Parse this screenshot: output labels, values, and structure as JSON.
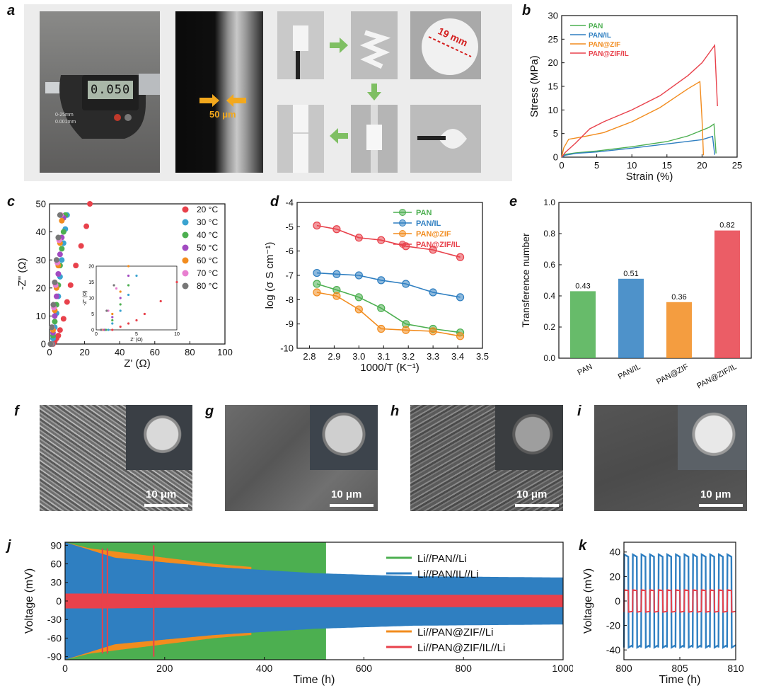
{
  "panel_labels": [
    "a",
    "b",
    "c",
    "d",
    "e",
    "f",
    "g",
    "h",
    "i",
    "j",
    "k"
  ],
  "panel_a": {
    "thickness_label": "50 μm",
    "diameter_label": "19 mm",
    "micrometer": {
      "reading": "0.050",
      "range": "0-25mm",
      "resolution": "0.001mm"
    }
  },
  "sem_panels": [
    {
      "id": "f",
      "scale_label": "10 μm"
    },
    {
      "id": "g",
      "scale_label": "10 μm"
    },
    {
      "id": "h",
      "scale_label": "10 μm"
    },
    {
      "id": "i",
      "scale_label": "10 μm"
    }
  ],
  "colors": {
    "PAN": "#4caf50",
    "PAN/IL": "#2f7fc1",
    "PAN@ZIF": "#f28c1e",
    "PAN@ZIF/IL": "#e8414b",
    "30C": "#3aa3d0",
    "50C": "#a24bc1",
    "70C": "#e87fd0",
    "80C": "#777777",
    "ink": "#111111"
  },
  "chart_data": [
    {
      "id": "b",
      "type": "line",
      "title": "",
      "xlabel": "Strain (%)",
      "ylabel": "Stress (MPa)",
      "xlim": [
        0,
        25
      ],
      "ylim": [
        0,
        30
      ],
      "xticks": [
        0,
        5,
        10,
        15,
        20,
        25
      ],
      "yticks": [
        0,
        5,
        10,
        15,
        20,
        25,
        30
      ],
      "legend_position": "top-left",
      "series": [
        {
          "name": "PAN",
          "x": [
            0,
            0.5,
            2,
            5,
            10,
            15,
            18,
            21,
            21.7,
            22
          ],
          "y": [
            0,
            0.6,
            0.9,
            1.3,
            2.2,
            3.3,
            4.5,
            6.3,
            7.0,
            0.8
          ]
        },
        {
          "name": "PAN/IL",
          "x": [
            0,
            0.5,
            2,
            5,
            10,
            15,
            20,
            21.5,
            21.8
          ],
          "y": [
            0,
            0.4,
            0.8,
            1.1,
            1.9,
            2.8,
            3.7,
            4.4,
            0.5
          ]
        },
        {
          "name": "PAN@ZIF",
          "x": [
            0,
            0.3,
            1,
            3,
            6,
            10,
            14,
            16,
            18,
            19.7,
            20,
            20.2
          ],
          "y": [
            0,
            2,
            3.8,
            4.3,
            5.2,
            7.5,
            10.5,
            12.5,
            14.5,
            16,
            8,
            0.4
          ]
        },
        {
          "name": "PAN@ZIF/IL",
          "x": [
            0,
            0.5,
            2,
            4,
            6,
            10,
            14,
            18,
            20,
            21.8,
            22.2
          ],
          "y": [
            0,
            1,
            3,
            6,
            7.5,
            10,
            13,
            17.3,
            20,
            23.7,
            10.8
          ]
        }
      ]
    },
    {
      "id": "c",
      "type": "scatter",
      "title": "",
      "xlabel": "Z' (Ω)",
      "ylabel": "-Z'' (Ω)",
      "xlim": [
        0,
        100
      ],
      "ylim": [
        0,
        50
      ],
      "xticks": [
        0,
        20,
        40,
        60,
        80,
        100
      ],
      "yticks": [
        0,
        10,
        20,
        30,
        40,
        50
      ],
      "legend_position": "right",
      "series": [
        {
          "name": "20 °C",
          "x": [
            2,
            3,
            4,
            5,
            6,
            8,
            10,
            12,
            15,
            18,
            21,
            23
          ],
          "y": [
            0,
            1,
            2,
            3,
            5,
            9,
            15,
            21,
            28,
            35,
            42,
            50
          ]
        },
        {
          "name": "30 °C",
          "x": [
            1.5,
            2,
            3,
            4,
            5,
            6,
            7,
            8,
            9,
            10
          ],
          "y": [
            0,
            2,
            6,
            11,
            17,
            24,
            30,
            36,
            41,
            46
          ]
        },
        {
          "name": "40 °C",
          "x": [
            1.2,
            2,
            3,
            4,
            5,
            6,
            7,
            8,
            9
          ],
          "y": [
            0,
            3,
            8,
            14,
            21,
            28,
            34,
            40,
            46
          ]
        },
        {
          "name": "50 °C",
          "x": [
            1,
            2,
            3,
            4,
            5,
            6,
            7,
            8
          ],
          "y": [
            0,
            4,
            10,
            17,
            25,
            32,
            38,
            45
          ]
        },
        {
          "name": "60 °C",
          "x": [
            0.8,
            2,
            3,
            4,
            5,
            6,
            7
          ],
          "y": [
            0,
            5,
            12,
            20,
            28,
            36,
            44
          ]
        },
        {
          "name": "70 °C",
          "x": [
            0.7,
            1.5,
            2.5,
            3.5,
            4.5,
            5.5,
            6.5
          ],
          "y": [
            0,
            6,
            13,
            21,
            29,
            37,
            46
          ]
        },
        {
          "name": "80 °C",
          "x": [
            0.6,
            1.3,
            2.2,
            3,
            4,
            5,
            6
          ],
          "y": [
            0,
            6,
            14,
            22,
            30,
            38,
            46
          ]
        }
      ],
      "inset": {
        "xlim": [
          0,
          10
        ],
        "ylim": [
          0,
          20
        ],
        "xticks": [
          0,
          5,
          10
        ],
        "yticks": [
          0,
          5,
          10,
          15,
          20
        ],
        "xlabel": "Z' (Ω)",
        "ylabel": "-Z'' (Ω)"
      }
    },
    {
      "id": "d",
      "type": "line",
      "title": "",
      "xlabel": "1000/T (K⁻¹)",
      "ylabel": "log (σ S cm⁻¹)",
      "xlim": [
        2.75,
        3.5
      ],
      "ylim": [
        -10,
        -4
      ],
      "xticks": [
        2.8,
        2.9,
        3.0,
        3.1,
        3.2,
        3.3,
        3.4,
        3.5
      ],
      "yticks": [
        -10,
        -9,
        -8,
        -7,
        -6,
        -5,
        -4
      ],
      "legend_position": "top-right",
      "x": [
        2.83,
        2.91,
        3.0,
        3.09,
        3.19,
        3.3,
        3.41
      ],
      "series": [
        {
          "name": "PAN",
          "values": [
            -7.35,
            -7.6,
            -7.9,
            -8.35,
            -9.0,
            -9.2,
            -9.35
          ]
        },
        {
          "name": "PAN/IL",
          "values": [
            -6.9,
            -6.95,
            -7.0,
            -7.2,
            -7.35,
            -7.7,
            -7.9
          ]
        },
        {
          "name": "PAN@ZIF",
          "values": [
            -7.7,
            -7.85,
            -8.4,
            -9.2,
            -9.25,
            -9.3,
            -9.5
          ]
        },
        {
          "name": "PAN@ZIF/IL",
          "values": [
            -4.95,
            -5.1,
            -5.45,
            -5.55,
            -5.8,
            -5.95,
            -6.25
          ]
        }
      ]
    },
    {
      "id": "e",
      "type": "bar",
      "title": "",
      "xlabel": "",
      "ylabel": "Transference number",
      "ylim": [
        0,
        1.0
      ],
      "yticks": [
        0.0,
        0.2,
        0.4,
        0.6,
        0.8,
        1.0
      ],
      "categories": [
        "PAN",
        "PAN/IL",
        "PAN@ZIF",
        "PAN@ZIF/IL"
      ],
      "values": [
        0.43,
        0.51,
        0.36,
        0.82
      ],
      "data_labels": [
        "0.43",
        "0.51",
        "0.36",
        "0.82"
      ]
    },
    {
      "id": "j",
      "type": "area",
      "title": "",
      "xlabel": "Time (h)",
      "ylabel": "Voltage (mV)",
      "xlim": [
        0,
        1000
      ],
      "ylim": [
        -95,
        95
      ],
      "xticks": [
        0,
        200,
        400,
        600,
        800,
        1000
      ],
      "yticks": [
        -90,
        -60,
        -30,
        0,
        30,
        60,
        90
      ],
      "legend_position": "right",
      "legend_top": [
        "Li//PAN//Li",
        "Li//PAN/IL//Li"
      ],
      "legend_bottom": [
        "Li//PAN@ZIF//Li",
        "Li//PAN@ZIF/IL//Li"
      ],
      "series": [
        {
          "name": "Li//PAN//Li",
          "end_time": 524,
          "amplitude": 95
        },
        {
          "name": "Li//PAN/IL//Li",
          "x": [
            0,
            100,
            300,
            500,
            700,
            1000
          ],
          "amplitude": [
            95,
            70,
            55,
            45,
            40,
            38
          ]
        },
        {
          "name": "Li//PAN@ZIF//Li",
          "end_time": 374,
          "x": [
            0,
            50,
            100,
            200,
            300,
            374
          ],
          "amplitude": [
            95,
            85,
            80,
            70,
            60,
            55
          ]
        },
        {
          "name": "Li//PAN@ZIF/IL//Li",
          "x": [
            0,
            100,
            200,
            400,
            700,
            1000
          ],
          "amplitude": [
            12,
            12,
            11,
            10,
            10,
            10
          ],
          "spikes": [
            {
              "t": 75,
              "mv": 85
            },
            {
              "t": 85,
              "mv": 85
            },
            {
              "t": 178,
              "mv": 90
            }
          ]
        }
      ]
    },
    {
      "id": "k",
      "type": "line",
      "title": "",
      "xlabel": "Time (h)",
      "ylabel": "Voltage (mV)",
      "xlim": [
        800,
        810
      ],
      "ylim": [
        -48,
        48
      ],
      "xticks": [
        800,
        805,
        810
      ],
      "yticks": [
        -40,
        -20,
        0,
        20,
        40
      ],
      "series": [
        {
          "name": "Li//PAN/IL//Li",
          "amplitude": 38,
          "cycles": 13
        },
        {
          "name": "Li//PAN@ZIF/IL//Li",
          "amplitude": 9,
          "cycles": 13
        }
      ]
    }
  ]
}
